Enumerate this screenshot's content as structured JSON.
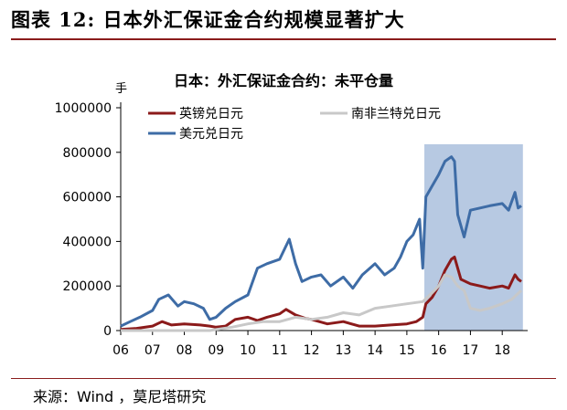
{
  "figure": {
    "title": "图表 12:  日本外汇保证金合约规模显著扩大",
    "source": "来源：Wind ，莫尼塔研究"
  },
  "chart_data": {
    "type": "line",
    "title": "日本：外汇保证金合约：未平仓量",
    "ylabel": "手",
    "ylim": [
      0,
      1000000
    ],
    "yticks": [
      "0",
      "200000",
      "400000",
      "600000",
      "800000",
      "1000000"
    ],
    "xlim": [
      2006.0,
      2018.8
    ],
    "xticks": [
      "06",
      "07",
      "08",
      "09",
      "10",
      "11",
      "12",
      "13",
      "14",
      "15",
      "16",
      "17",
      "18"
    ],
    "highlight_span": [
      2015.55,
      2018.65
    ],
    "highlight_color": "#b7c9e2",
    "legend_position": "top-left",
    "series": [
      {
        "name": "英镑兑日元",
        "color": "#8b1a1a",
        "x": [
          2006.0,
          2006.5,
          2007.0,
          2007.3,
          2007.6,
          2008.0,
          2008.5,
          2008.8,
          2009.0,
          2009.3,
          2009.6,
          2010.0,
          2010.3,
          2010.6,
          2011.0,
          2011.2,
          2011.5,
          2011.8,
          2012.0,
          2012.5,
          2013.0,
          2013.5,
          2014.0,
          2014.5,
          2015.0,
          2015.3,
          2015.5,
          2015.6,
          2015.8,
          2016.0,
          2016.2,
          2016.4,
          2016.5,
          2016.7,
          2017.0,
          2017.3,
          2017.6,
          2018.0,
          2018.2,
          2018.4,
          2018.5,
          2018.6
        ],
        "values": [
          5000,
          10000,
          20000,
          40000,
          25000,
          30000,
          25000,
          20000,
          15000,
          20000,
          50000,
          60000,
          45000,
          60000,
          75000,
          95000,
          70000,
          55000,
          50000,
          30000,
          40000,
          20000,
          20000,
          25000,
          30000,
          40000,
          60000,
          120000,
          150000,
          200000,
          270000,
          320000,
          330000,
          230000,
          210000,
          200000,
          190000,
          200000,
          190000,
          250000,
          230000,
          220000
        ]
      },
      {
        "name": "南非兰特兑日元",
        "color": "#c8c8c8",
        "x": [
          2006.0,
          2007.0,
          2008.0,
          2008.8,
          2009.0,
          2009.5,
          2010.0,
          2010.5,
          2011.0,
          2011.5,
          2012.0,
          2012.5,
          2013.0,
          2013.5,
          2014.0,
          2014.5,
          2015.0,
          2015.5,
          2015.8,
          2016.0,
          2016.2,
          2016.4,
          2016.6,
          2016.8,
          2017.0,
          2017.3,
          2017.6,
          2018.0,
          2018.3,
          2018.6
        ],
        "values": [
          0,
          0,
          0,
          0,
          5000,
          15000,
          30000,
          40000,
          40000,
          60000,
          50000,
          60000,
          80000,
          70000,
          100000,
          110000,
          120000,
          130000,
          170000,
          200000,
          250000,
          240000,
          200000,
          180000,
          100000,
          90000,
          100000,
          120000,
          140000,
          180000
        ]
      },
      {
        "name": "美元兑日元",
        "color": "#3e6ca6",
        "x": [
          2006.0,
          2006.3,
          2006.6,
          2007.0,
          2007.2,
          2007.5,
          2007.8,
          2008.0,
          2008.3,
          2008.6,
          2008.8,
          2009.0,
          2009.3,
          2009.6,
          2010.0,
          2010.3,
          2010.6,
          2011.0,
          2011.3,
          2011.5,
          2011.7,
          2012.0,
          2012.3,
          2012.6,
          2013.0,
          2013.3,
          2013.6,
          2014.0,
          2014.3,
          2014.6,
          2014.8,
          2015.0,
          2015.2,
          2015.4,
          2015.5,
          2015.6,
          2015.8,
          2016.0,
          2016.2,
          2016.4,
          2016.5,
          2016.6,
          2016.8,
          2017.0,
          2017.3,
          2017.6,
          2018.0,
          2018.2,
          2018.4,
          2018.5,
          2018.6
        ],
        "values": [
          20000,
          40000,
          60000,
          90000,
          140000,
          160000,
          110000,
          130000,
          120000,
          100000,
          50000,
          60000,
          100000,
          130000,
          160000,
          280000,
          300000,
          320000,
          410000,
          300000,
          220000,
          240000,
          250000,
          200000,
          240000,
          190000,
          250000,
          300000,
          250000,
          280000,
          330000,
          400000,
          430000,
          500000,
          280000,
          600000,
          650000,
          700000,
          760000,
          780000,
          760000,
          520000,
          420000,
          540000,
          550000,
          560000,
          570000,
          540000,
          620000,
          550000,
          560000
        ]
      }
    ]
  }
}
